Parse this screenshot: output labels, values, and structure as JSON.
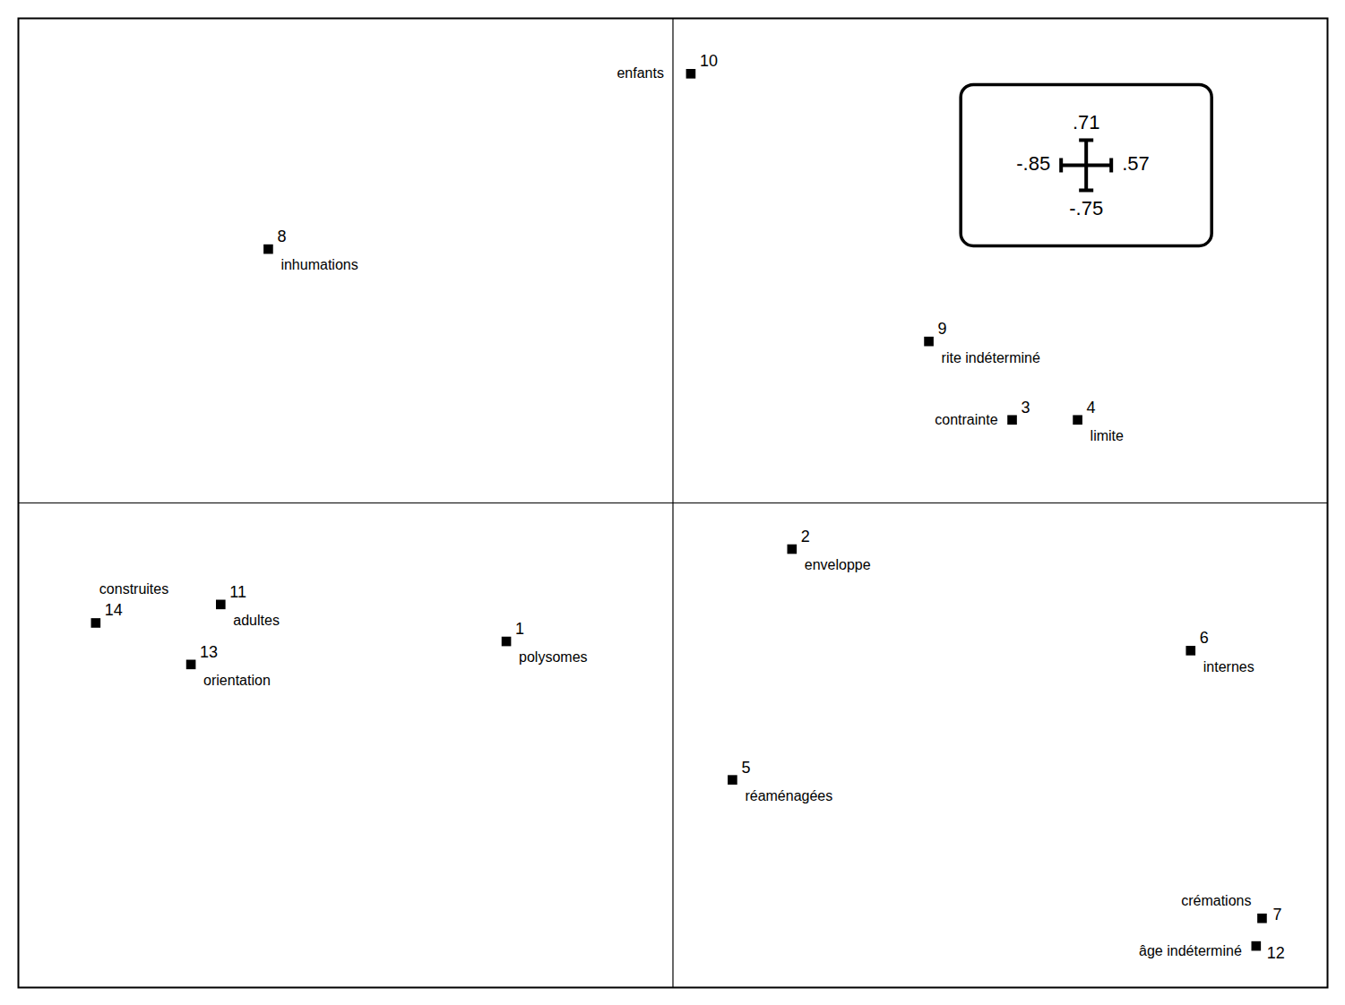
{
  "chart_data": {
    "type": "scatter",
    "x": [
      -0.28,
      0.2,
      0.57,
      0.68,
      0.1,
      0.87,
      0.99,
      -0.68,
      0.43,
      0.03,
      -0.76,
      0.98,
      -0.81,
      -0.97
    ],
    "values": [
      -0.3,
      -0.1,
      0.18,
      0.18,
      -0.6,
      -0.32,
      -0.9,
      0.55,
      0.35,
      0.93,
      -0.22,
      -0.96,
      -0.35,
      -0.26
    ],
    "ids": [
      1,
      2,
      3,
      4,
      5,
      6,
      7,
      8,
      9,
      10,
      11,
      12,
      13,
      14
    ],
    "point_labels": [
      "polysomes",
      "enveloppe",
      "contrainte",
      "limite",
      "réaménagées",
      "internes",
      "crémations",
      "inhumations",
      "rite indéterminé",
      "enfants",
      "adultes",
      "âge indéterminé",
      "orientation",
      "construites"
    ],
    "annotations": [
      ".71",
      "-.75",
      "-.85",
      ".57"
    ],
    "xlim": [
      -1.1,
      1.1
    ],
    "ylim": [
      -1.05,
      1.05
    ],
    "xticks": [],
    "yticks": [],
    "tick_labels": false,
    "grid": false,
    "color": "#000000",
    "marker": "square"
  }
}
